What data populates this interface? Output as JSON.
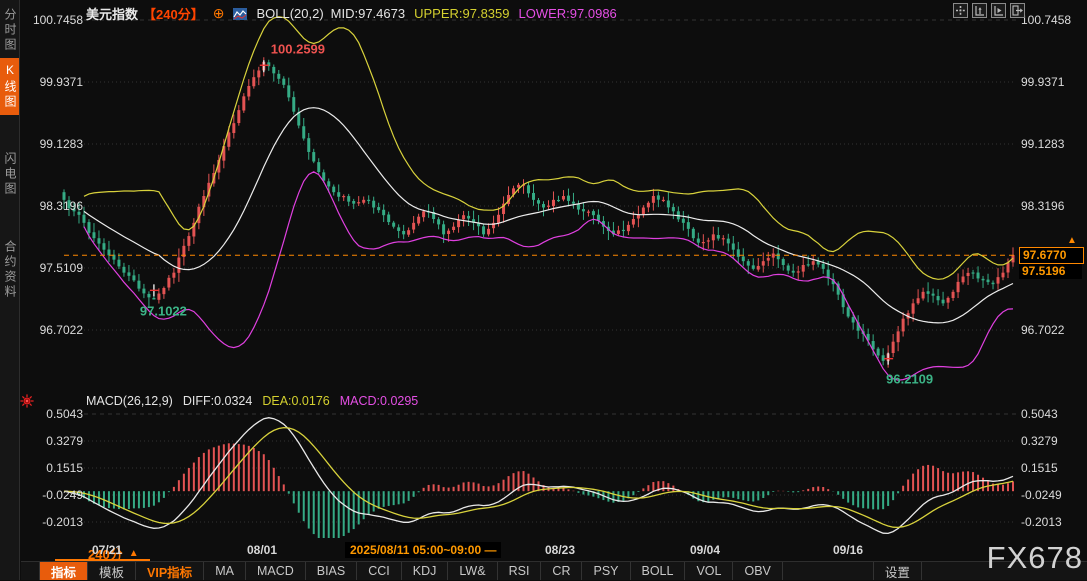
{
  "header": {
    "symbol": "美元指数",
    "period": "【240分】",
    "indicator": "BOLL(20,2)",
    "mid": "MID:97.4673",
    "upper": "UPPER:97.8359",
    "lower": "LOWER:97.0986"
  },
  "icons": {
    "collapse_glyph": "⊕",
    "up_triangle": "▲",
    "tool_names": [
      "move-tool",
      "axis-zoom-up",
      "axis-zoom-right",
      "exit-panel"
    ]
  },
  "sidebar": {
    "tabs": [
      {
        "label": "分时图",
        "active": false
      },
      {
        "label": "K线图",
        "active": true
      },
      {
        "label": "闪电图",
        "active": false
      },
      {
        "label": "合约资料",
        "active": false
      }
    ]
  },
  "main_chart": {
    "price_tags": {
      "current": "97.6770",
      "previous": "97.5196"
    }
  },
  "macd_header": {
    "params": "MACD(26,12,9)",
    "diff": "DIFF:0.0324",
    "dea": "DEA:0.0176",
    "macd": "MACD:0.0295"
  },
  "xaxis": {
    "period_tab": "240分",
    "highlight": "2025/08/11 05:00~09:00 —"
  },
  "watermark": "FX678",
  "toolbar": {
    "items": [
      {
        "label": "指标"
      },
      {
        "label": "模板"
      },
      {
        "label": "VIP指标"
      },
      {
        "label": "MA"
      },
      {
        "label": "MACD"
      },
      {
        "label": "BIAS"
      },
      {
        "label": "CCI"
      },
      {
        "label": "KDJ"
      },
      {
        "label": "LW&"
      },
      {
        "label": "RSI"
      },
      {
        "label": "CR"
      },
      {
        "label": "PSY"
      },
      {
        "label": "BOLL"
      },
      {
        "label": "VOL"
      },
      {
        "label": "OBV"
      },
      {
        "label": "设置"
      }
    ]
  },
  "colors": {
    "background": "#0d0d0d",
    "accent_orange": "#ff7700",
    "period_red": "#ff4400",
    "candle_up": "#e35353",
    "candle_down": "#35ab85",
    "boll_upper": "#d8d23c",
    "boll_mid": "#ececec",
    "boll_lower": "#e040e0",
    "macd_hist_pos": "#e35353",
    "macd_hist_neg": "#35ab85",
    "macd_diff_line": "#e8e8e8",
    "macd_dea_line": "#d8d23c",
    "grid": "#343434",
    "annotation_high": "#ef5350",
    "annotation_low": "#3cb487",
    "price_line": "#ff8800"
  },
  "chart_data": {
    "type": "candlestick",
    "symbol": "美元指数",
    "interval": "240min",
    "y_ticks": [
      100.7458,
      99.9371,
      99.1283,
      98.3196,
      97.5109,
      96.7022
    ],
    "macd_ticks": [
      0.5043,
      0.3279,
      0.1515,
      -0.0249,
      -0.2013
    ],
    "x_dates": [
      "07/21",
      "08/01",
      "08/23",
      "09/04",
      "09/16"
    ],
    "close": [
      98.4,
      98.25,
      98.1,
      97.9,
      97.75,
      97.62,
      97.45,
      97.35,
      97.18,
      97.1,
      97.25,
      97.45,
      97.8,
      98.1,
      98.45,
      98.75,
      99.1,
      99.4,
      99.75,
      100.0,
      100.2,
      100.05,
      99.9,
      99.55,
      99.2,
      98.9,
      98.65,
      98.5,
      98.45,
      98.35,
      98.4,
      98.3,
      98.2,
      98.05,
      97.95,
      98.1,
      98.25,
      98.15,
      97.95,
      98.05,
      98.2,
      98.1,
      97.95,
      98.1,
      98.35,
      98.55,
      98.6,
      98.4,
      98.3,
      98.4,
      98.45,
      98.35,
      98.25,
      98.2,
      98.05,
      97.95,
      98.0,
      98.15,
      98.3,
      98.45,
      98.4,
      98.25,
      98.1,
      97.9,
      97.85,
      97.95,
      97.9,
      97.75,
      97.6,
      97.5,
      97.6,
      97.7,
      97.55,
      97.45,
      97.55,
      97.6,
      97.5,
      97.3,
      97.0,
      96.8,
      96.65,
      96.45,
      96.3,
      96.55,
      96.85,
      97.05,
      97.2,
      97.15,
      97.05,
      97.2,
      97.4,
      97.45,
      97.35,
      97.3,
      97.45,
      97.68
    ],
    "last_price": 97.677,
    "prev_price": 97.5196,
    "boll": {
      "window": 20,
      "k": 2,
      "mid": 97.4673,
      "upper": 97.8359,
      "lower": 97.0986
    },
    "macd": {
      "fast": 26,
      "slow": 12,
      "signal": 9,
      "diff": 0.0324,
      "dea": 0.0176,
      "macd": 0.0295
    },
    "annotations": [
      {
        "kind": "high",
        "value": 100.2599,
        "label": "100.2599"
      },
      {
        "kind": "low-early",
        "value": 97.1022,
        "label": "97.1022"
      },
      {
        "kind": "low",
        "value": 96.2109,
        "label": "96.2109"
      }
    ]
  }
}
